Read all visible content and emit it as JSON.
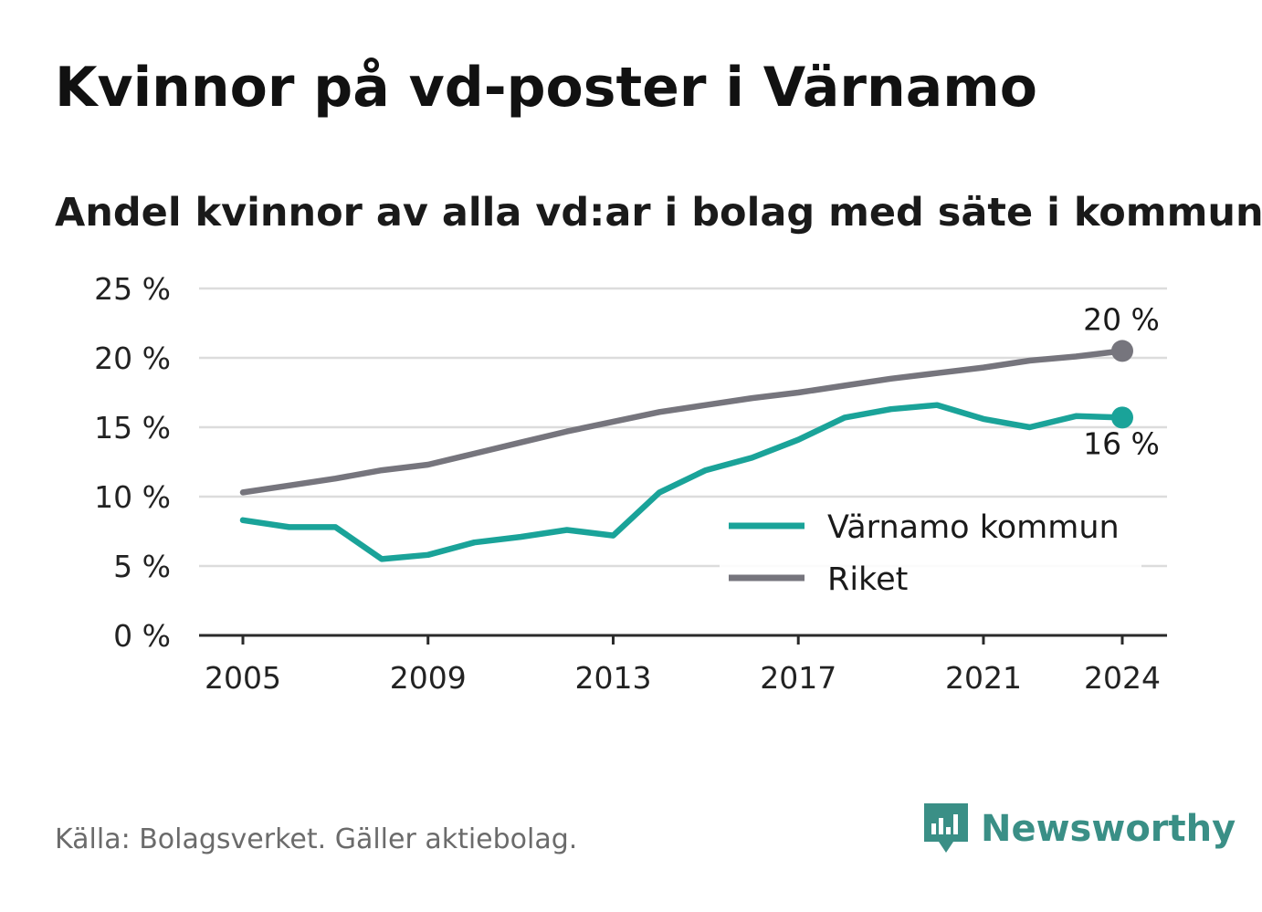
{
  "title": "Kvinnor på vd-poster i Värnamo",
  "subtitle": "Andel kvinnor av alla vd:ar i bolag med säte i kommunen",
  "source": "Källa: Bolagsverket. Gäller aktiebolag.",
  "brand": {
    "name": "Newsworthy",
    "icon": "newsworthy-logo-icon",
    "color": "#3a8f86"
  },
  "chart_data": {
    "type": "line",
    "x": [
      2005,
      2006,
      2007,
      2008,
      2009,
      2010,
      2011,
      2012,
      2013,
      2014,
      2015,
      2016,
      2017,
      2018,
      2019,
      2020,
      2021,
      2022,
      2023,
      2024
    ],
    "x_ticks": [
      2005,
      2009,
      2013,
      2017,
      2021,
      2024
    ],
    "x_tick_labels": [
      "2005",
      "2009",
      "2013",
      "2017",
      "2021",
      "2024"
    ],
    "y_ticks": [
      0,
      5,
      10,
      15,
      20,
      25
    ],
    "y_tick_labels": [
      "0 %",
      "5 %",
      "10 %",
      "15 %",
      "20 %",
      "25 %"
    ],
    "ylim": [
      0,
      25
    ],
    "grid": true,
    "legend_position": "right, inside plot area",
    "series": [
      {
        "name": "Värnamo kommun",
        "color": "#1aa399",
        "values": [
          8.3,
          7.8,
          7.8,
          5.5,
          5.8,
          6.7,
          7.1,
          7.6,
          7.2,
          10.3,
          11.9,
          12.8,
          14.1,
          15.7,
          16.3,
          16.6,
          15.6,
          15.0,
          15.8,
          15.7
        ],
        "end_label": "16 %"
      },
      {
        "name": "Riket",
        "color": "#76757d",
        "values": [
          10.3,
          10.8,
          11.3,
          11.9,
          12.3,
          13.1,
          13.9,
          14.7,
          15.4,
          16.1,
          16.6,
          17.1,
          17.5,
          18.0,
          18.5,
          18.9,
          19.3,
          19.8,
          20.1,
          20.5
        ],
        "end_label": "20 %"
      }
    ]
  }
}
